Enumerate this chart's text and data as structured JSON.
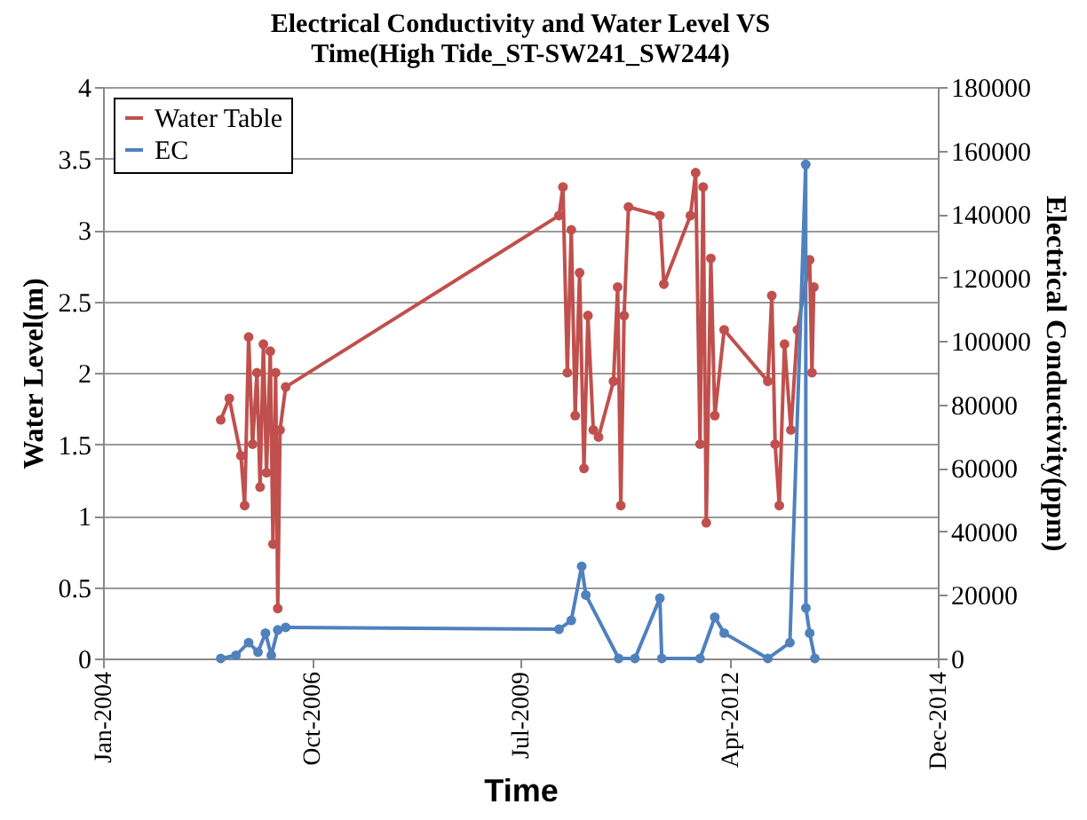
{
  "chart_data": {
    "type": "line",
    "title": [
      "Electrical Conductivity and Water Level VS",
      "Time(High Tide_ST-SW241_SW244)"
    ],
    "xlabel": "Time",
    "ylabel": "Water Level(m)",
    "y2label": "Electrical Conductivity(ppm)",
    "xlim": [
      "2004-01-01",
      "2014-12-27"
    ],
    "xticks": [
      {
        "value": "2004-01-01",
        "label": "Jan-2004"
      },
      {
        "value": "2006-10-01",
        "label": "Oct-2006"
      },
      {
        "value": "2009-07-01",
        "label": "Jul-2009"
      },
      {
        "value": "2012-04-01",
        "label": "Apr-2012"
      },
      {
        "value": "2014-12-27",
        "label": "Dec-2014"
      }
    ],
    "ylim": [
      0,
      4
    ],
    "yticks": [
      0,
      0.5,
      1,
      1.5,
      2,
      2.5,
      3,
      3.5,
      4
    ],
    "y2lim": [
      0,
      180000
    ],
    "y2ticks": [
      0,
      20000,
      40000,
      60000,
      80000,
      100000,
      120000,
      140000,
      160000,
      180000
    ],
    "grid": "y",
    "legend": "top left",
    "marker": "circle",
    "line_style": "solid",
    "series": [
      {
        "name": "Water Table",
        "color": "#c0504d",
        "axis": "y",
        "x": [
          "2005-07-20",
          "2005-08-30",
          "2005-10-25",
          "2005-11-12",
          "2005-12-01",
          "2005-12-20",
          "2006-01-10",
          "2006-01-25",
          "2006-02-10",
          "2006-02-25",
          "2006-03-15",
          "2006-03-28",
          "2006-04-10",
          "2006-04-20",
          "2006-05-01",
          "2006-05-28",
          "2010-01-01",
          "2010-01-20",
          "2010-02-10",
          "2010-03-01",
          "2010-03-20",
          "2010-04-10",
          "2010-05-01",
          "2010-05-20",
          "2010-06-15",
          "2010-07-10",
          "2010-09-20",
          "2010-10-10",
          "2010-10-25",
          "2010-11-10",
          "2010-12-01",
          "2011-05-01",
          "2011-05-20",
          "2011-09-25",
          "2011-10-20",
          "2011-11-10",
          "2011-11-25",
          "2011-12-10",
          "2012-01-01",
          "2012-01-20",
          "2012-03-05",
          "2012-10-01",
          "2012-10-20",
          "2012-11-05",
          "2012-11-25",
          "2012-12-20",
          "2013-01-20",
          "2013-02-20",
          "2013-04-20",
          "2013-05-01",
          "2013-05-10"
        ],
        "values": [
          1.67,
          1.82,
          1.42,
          1.07,
          2.25,
          1.5,
          2.0,
          1.2,
          2.2,
          1.3,
          2.15,
          0.8,
          2.0,
          0.35,
          1.6,
          1.9,
          3.1,
          3.3,
          2.0,
          3.0,
          1.7,
          2.7,
          1.33,
          2.4,
          1.6,
          1.55,
          1.94,
          2.6,
          1.07,
          2.4,
          3.16,
          3.1,
          2.62,
          3.1,
          3.4,
          1.5,
          3.3,
          0.95,
          2.8,
          1.7,
          2.3,
          1.94,
          2.54,
          1.5,
          1.07,
          2.2,
          1.6,
          2.3,
          2.79,
          2.0,
          2.6
        ]
      },
      {
        "name": "EC",
        "color": "#4f81bd",
        "axis": "y2",
        "x": [
          "2005-07-20",
          "2005-10-01",
          "2005-12-01",
          "2006-01-15",
          "2006-02-20",
          "2006-03-20",
          "2006-04-20",
          "2006-05-28",
          "2010-01-01",
          "2010-03-01",
          "2010-04-20",
          "2010-05-10",
          "2010-10-15",
          "2011-01-01",
          "2011-05-01",
          "2011-05-10",
          "2011-11-10",
          "2012-01-20",
          "2012-03-05",
          "2012-10-01",
          "2013-01-15",
          "2013-04-01",
          "2013-04-02",
          "2013-04-20",
          "2013-05-15"
        ],
        "values": [
          0,
          1000,
          5000,
          2000,
          8000,
          1000,
          9000,
          9800,
          9200,
          12000,
          29000,
          20000,
          0,
          0,
          19000,
          0,
          0,
          13000,
          8000,
          0,
          5000,
          155600,
          15900,
          8000,
          0
        ]
      }
    ]
  }
}
